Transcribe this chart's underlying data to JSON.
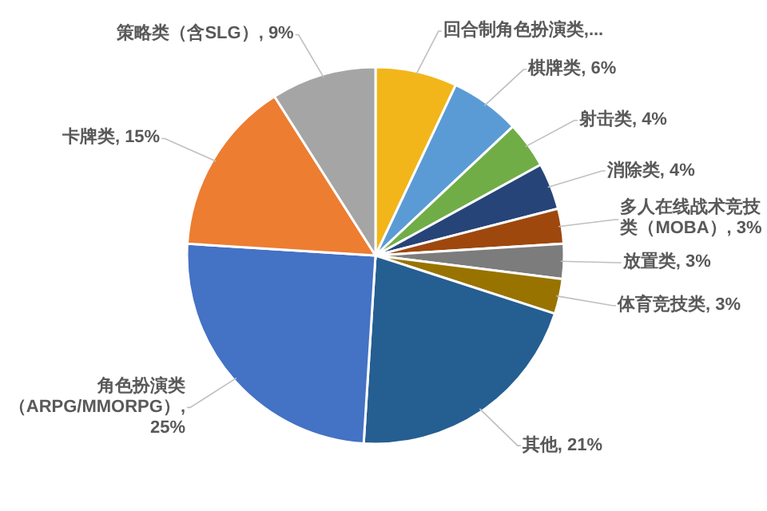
{
  "chart_data": {
    "type": "pie",
    "categories": [
      "回合制角色扮演类,...",
      "棋牌类",
      "射击类",
      "消除类",
      "多人在线战术竞技类（MOBA）",
      "放置类",
      "体育竞技类",
      "其他",
      "角色扮演类（ARPG/MMORPG）",
      "卡牌类",
      "策略类（含SLG）"
    ],
    "values": [
      7,
      6,
      4,
      4,
      3,
      3,
      3,
      21,
      25,
      15,
      9
    ],
    "value_labels": [
      null,
      ", 6%",
      ", 4%",
      ", 4%",
      ", 3%",
      ", 3%",
      ", 3%",
      ", 21%",
      ", 25%",
      ", 15%",
      ", 9%"
    ],
    "colors": [
      "#f2b61a",
      "#5b9bd5",
      "#70ad47",
      "#264478",
      "#9e480e",
      "#7c7c7c",
      "#997300",
      "#255e91",
      "#4472c4",
      "#ed7d31",
      "#a5a5a5"
    ]
  }
}
